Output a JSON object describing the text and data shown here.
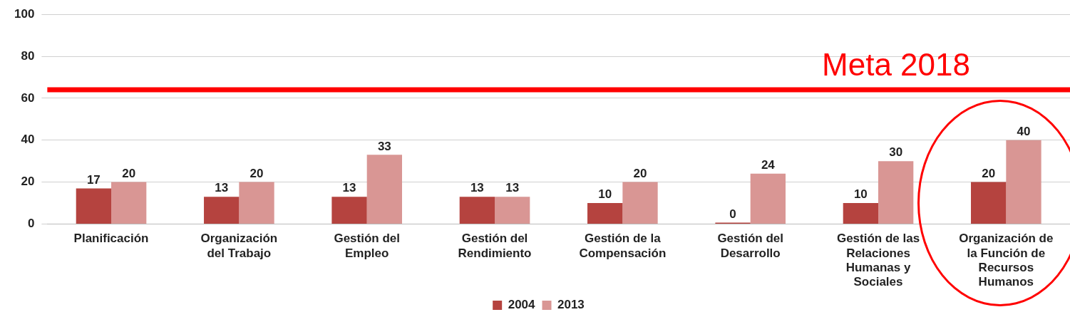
{
  "chart_data": {
    "type": "bar",
    "categories": [
      "Planificación",
      "Organización del Trabajo",
      "Gestión del Empleo",
      "Gestión del Rendimiento",
      "Gestión de la Compensación",
      "Gestión del Desarrollo",
      "Gestión de las Relaciones Humanas y Sociales",
      "Organización de la Función de Recursos Humanos"
    ],
    "series": [
      {
        "name": "2004",
        "color": "#b5433f",
        "values": [
          17,
          13,
          13,
          13,
          10,
          0,
          10,
          20
        ]
      },
      {
        "name": "2013",
        "color": "#d99694",
        "values": [
          20,
          20,
          33,
          13,
          20,
          24,
          30,
          40
        ]
      }
    ],
    "ylim": [
      0,
      100
    ],
    "yticks": [
      0,
      20,
      40,
      60,
      80,
      100
    ],
    "grid": "y",
    "legend": "bottom",
    "data_labels": true,
    "ref_lines": [
      {
        "axis": "y",
        "value": 64,
        "label": "Meta 2018",
        "color": "#ff0000"
      }
    ]
  }
}
